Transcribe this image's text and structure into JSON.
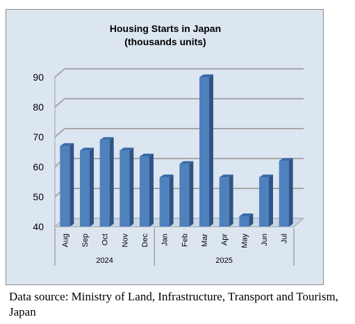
{
  "chart_data": {
    "type": "bar",
    "title": "Housing Starts in Japan",
    "subtitle": "(thousands units)",
    "categories": [
      "Aug",
      "Sep",
      "Oct",
      "Nov",
      "Dec",
      "Jan",
      "Feb",
      "Mar",
      "Apr",
      "May",
      "Jun",
      "Jul"
    ],
    "values": [
      67,
      65.5,
      69,
      65.5,
      63.5,
      56.5,
      61,
      90,
      56.5,
      43.5,
      56.5,
      62
    ],
    "ylim": [
      40,
      90
    ],
    "yticks": [
      "40",
      "50",
      "60",
      "70",
      "80",
      "90"
    ],
    "year_groups": [
      {
        "label": "2024",
        "count": 5
      },
      {
        "label": "2025",
        "count": 7
      }
    ],
    "grid": true,
    "bar_color": "#4f81bd"
  },
  "source_note": "Data source: Ministry of Land, Infrastructure, Transport and Tourism, Japan"
}
